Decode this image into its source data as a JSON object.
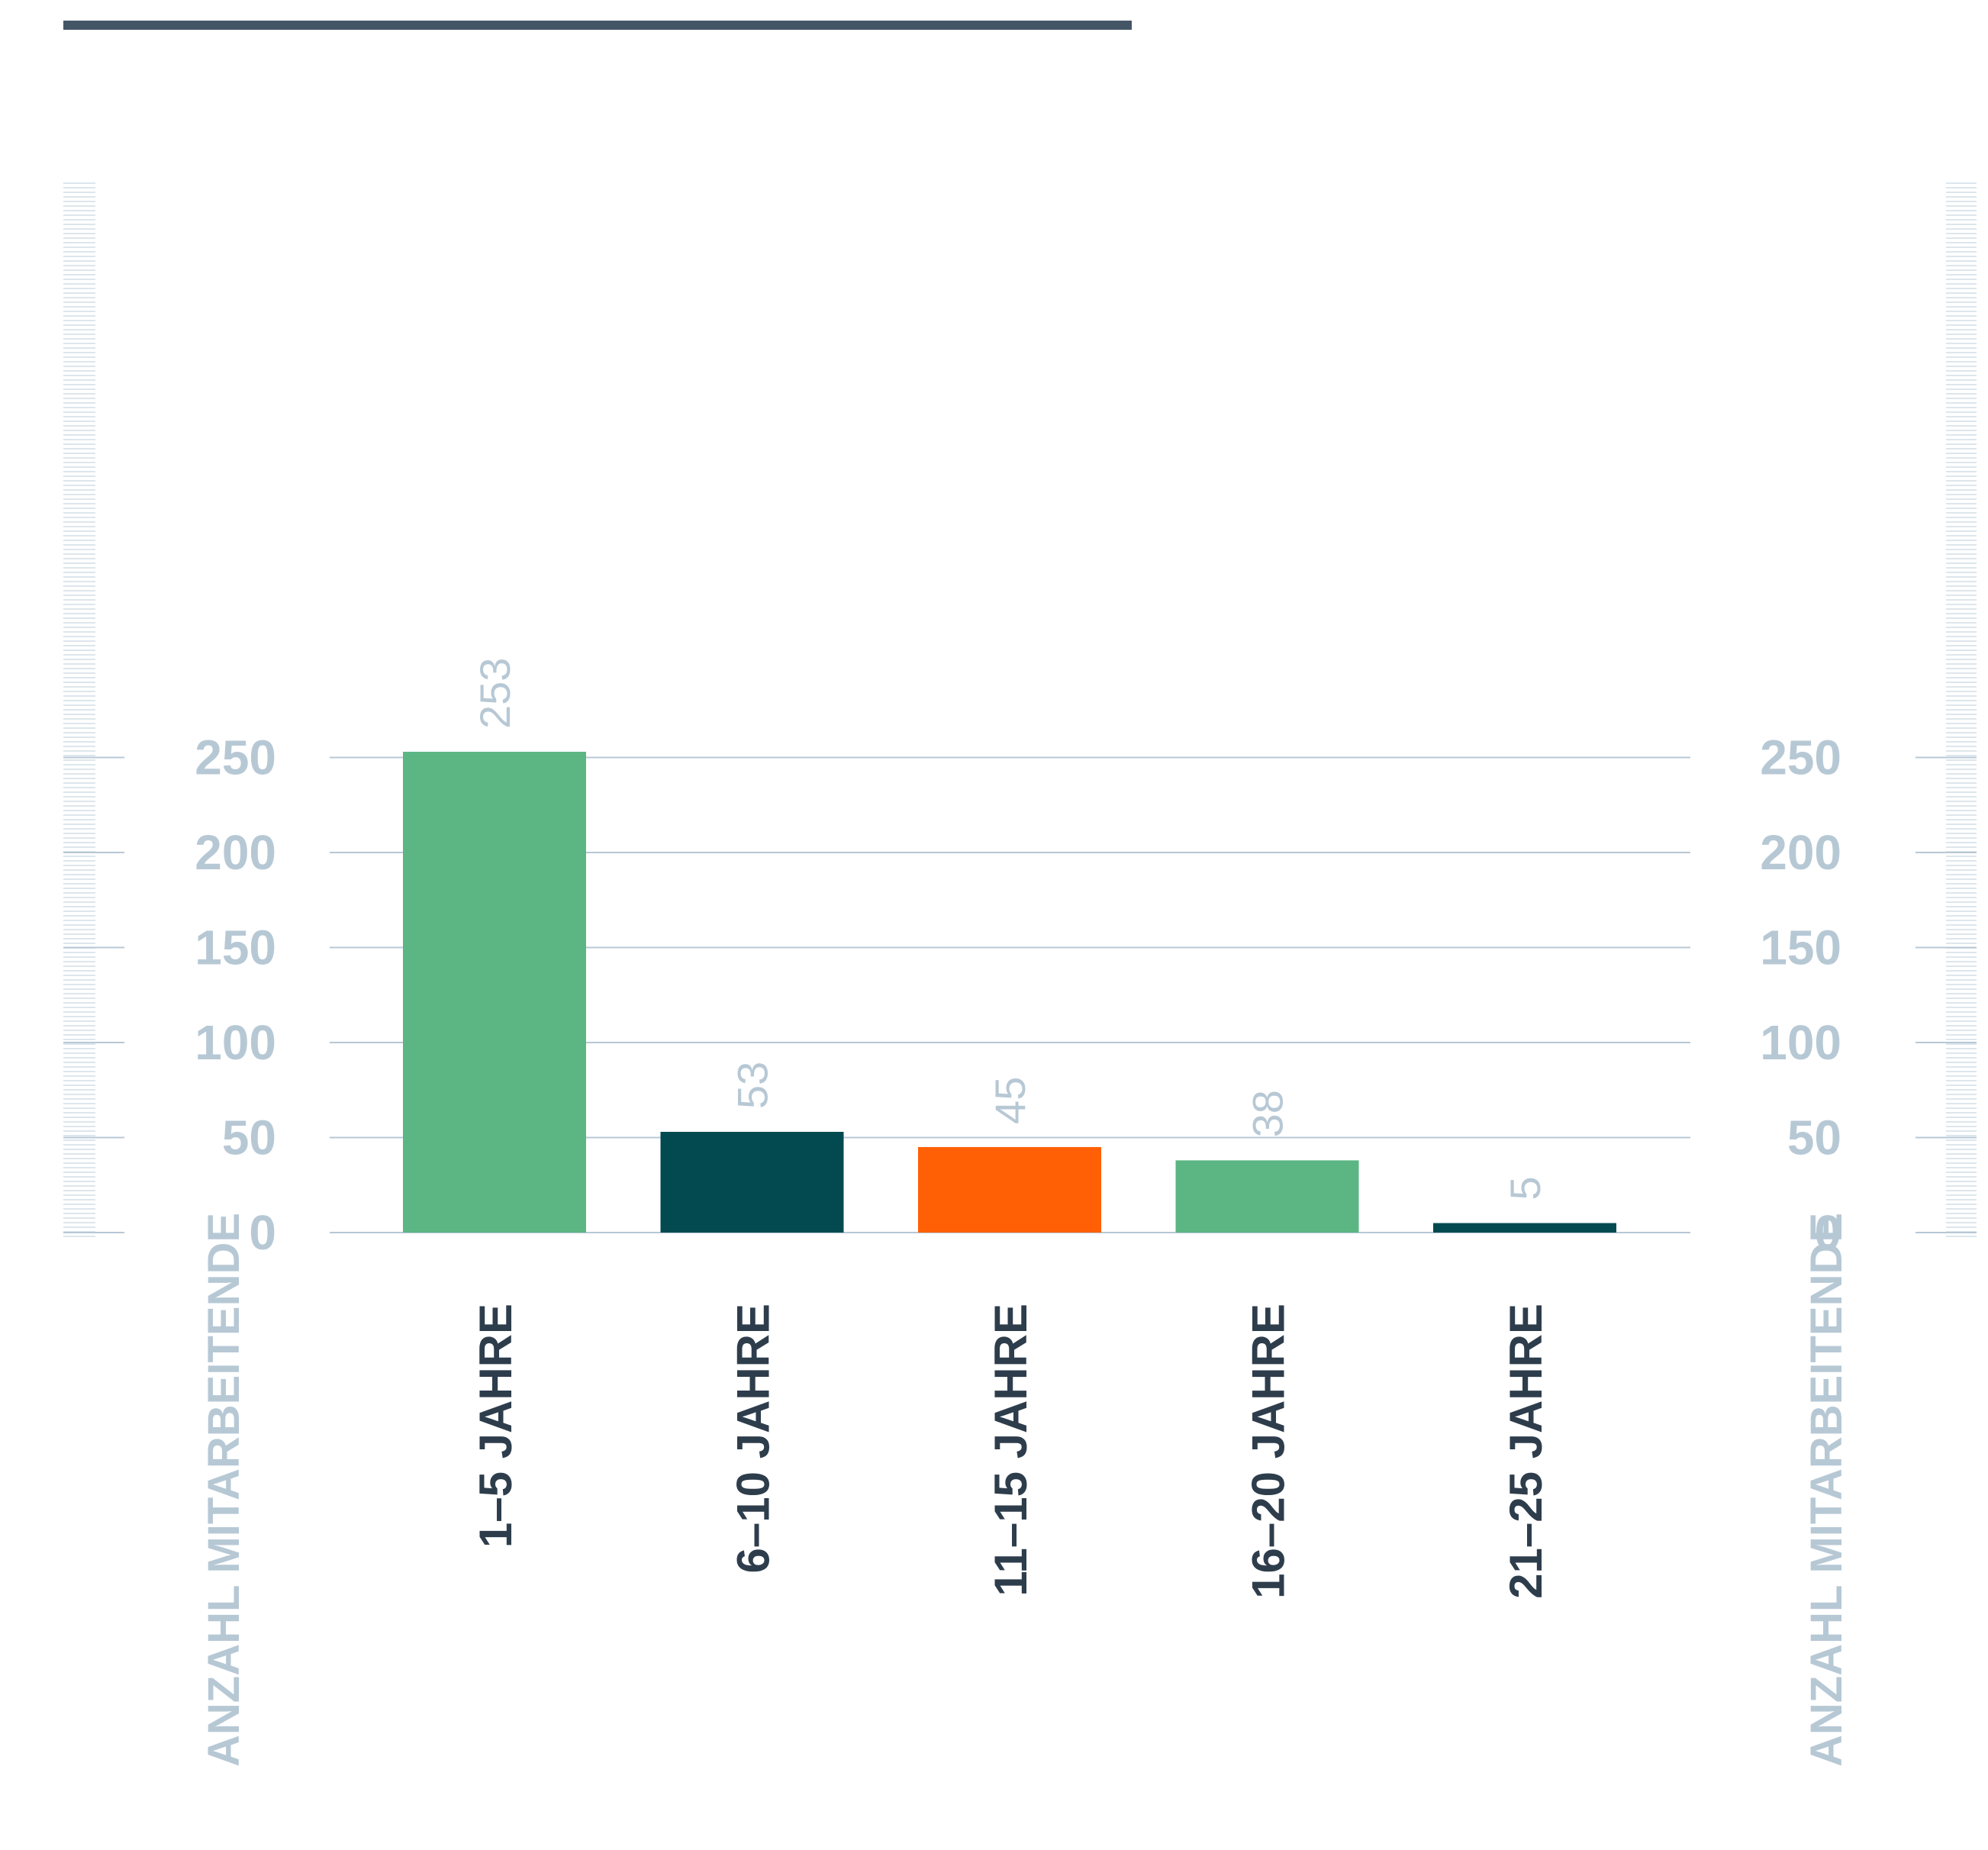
{
  "chart_data": {
    "type": "bar",
    "categories": [
      "1–5 JAHRE",
      "6–10 JAHRE",
      "11–15 JAHRE",
      "16–20 JAHRE",
      "21–25 JAHRE"
    ],
    "values": [
      253,
      53,
      45,
      38,
      5
    ],
    "value_labels": [
      "253",
      "53",
      "45",
      "38",
      "5"
    ],
    "bar_colors": [
      "#5bb683",
      "#034a50",
      "#ff6005",
      "#5bb683",
      "#034a50"
    ],
    "yticks": [
      0,
      50,
      100,
      150,
      200,
      250
    ],
    "ytick_labels": [
      "0",
      "50",
      "100",
      "150",
      "200",
      "250"
    ],
    "ylim": [
      0,
      265
    ],
    "ylabel_left": "ANZAHL MITARBEITENDE",
    "ylabel_right": "ANZAHL MITARBEITENDE",
    "grid": true,
    "colors": {
      "header_rule": "#445566",
      "grid": "#b7c8d5",
      "axis_text": "#b7c8d5",
      "value_text": "#b7c8d5",
      "category_text": "#2e3d4c"
    }
  }
}
